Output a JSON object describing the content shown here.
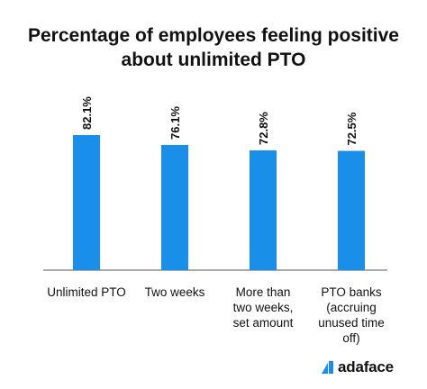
{
  "chart_data": {
    "type": "bar",
    "title_lines": [
      "Percentage of employees feeling positive",
      "about unlimited PTO"
    ],
    "categories": [
      [
        "Unlimited PTO"
      ],
      [
        "Two weeks"
      ],
      [
        "More than",
        "two weeks,",
        "set amount"
      ],
      [
        "PTO banks",
        "(accruing",
        "unused time",
        "off)"
      ]
    ],
    "values": [
      82.1,
      76.1,
      72.8,
      72.5
    ],
    "value_labels": [
      "82.1%",
      "76.1%",
      "72.8%",
      "72.5%"
    ],
    "ylim": [
      0,
      100
    ],
    "bar_color": "#1a8fea",
    "grid": false
  },
  "brand": {
    "name": "adaface",
    "accent_color": "#1a8fea",
    "icon": "adaface-logo-icon"
  }
}
